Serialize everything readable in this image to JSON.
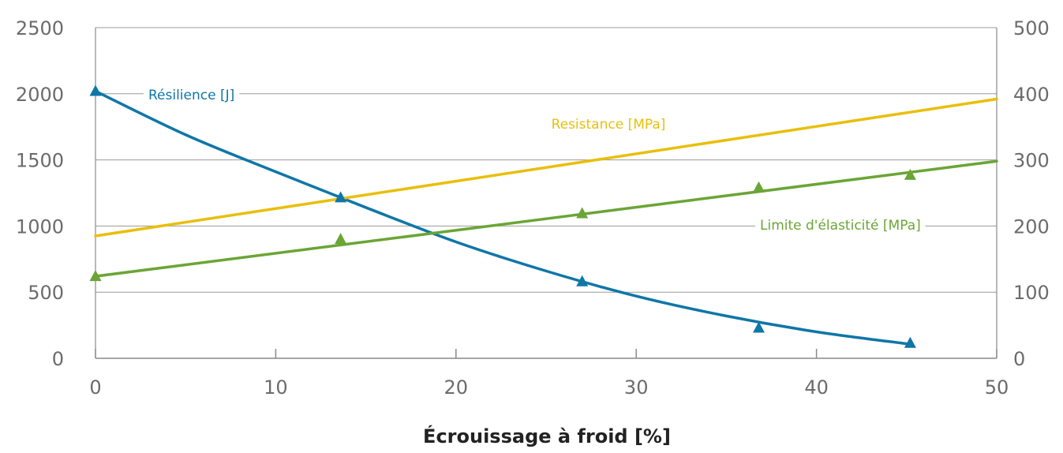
{
  "chart_data": {
    "type": "line",
    "xlabel": "Écrouissage à froid [%]",
    "xlim": [
      0,
      50
    ],
    "x_ticks": [
      "0",
      "10",
      "20",
      "30",
      "40",
      "50"
    ],
    "y_left_lim": [
      0,
      2500
    ],
    "y_left_ticks": [
      "0",
      "500",
      "1000",
      "1500",
      "2000",
      "2500"
    ],
    "y_right_lim": [
      0,
      500
    ],
    "y_right_ticks": [
      "0",
      "100",
      "200",
      "300",
      "400",
      "500"
    ],
    "grid": "horizontal",
    "series": [
      {
        "name": "Résilience [J]",
        "axis": "left",
        "color": "#0f76a8",
        "marker": "triangle",
        "points": [
          [
            0,
            2020
          ],
          [
            13.6,
            1215
          ],
          [
            27,
            580
          ],
          [
            36.8,
            230
          ],
          [
            45.2,
            115
          ]
        ],
        "trend": [
          [
            0,
            2020
          ],
          [
            5,
            1690
          ],
          [
            10,
            1410
          ],
          [
            15,
            1140
          ],
          [
            20,
            880
          ],
          [
            25,
            660
          ],
          [
            30,
            470
          ],
          [
            35,
            320
          ],
          [
            40,
            200
          ],
          [
            45,
            110
          ]
        ]
      },
      {
        "name": "Resistance [MPa]",
        "axis": "right",
        "color": "#e8bf0c",
        "marker": "none",
        "trend": [
          [
            0,
            185
          ],
          [
            50,
            392
          ]
        ]
      },
      {
        "name": "Limite d'élasticité [MPa]",
        "axis": "right",
        "color": "#6aa535",
        "marker": "triangle",
        "points": [
          [
            0,
            124
          ],
          [
            13.6,
            180
          ],
          [
            27,
            219
          ],
          [
            36.8,
            258
          ],
          [
            45.2,
            277
          ]
        ],
        "trend": [
          [
            0,
            124
          ],
          [
            50,
            298
          ]
        ]
      }
    ]
  }
}
